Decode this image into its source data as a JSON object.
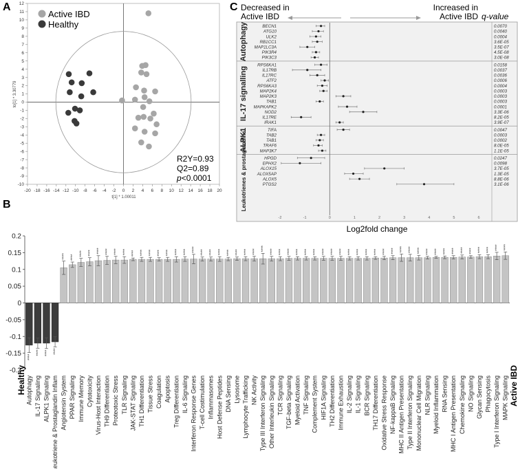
{
  "panels": {
    "a": {
      "letter": "A",
      "legend": [
        {
          "label": "Active IBD",
          "color": "#a6a6a6"
        },
        {
          "label": "Healthy",
          "color": "#3a3a3a"
        }
      ],
      "xlabel": "t[1] * 1.00011",
      "ylabel": "to[1] * 3.30779",
      "stats": [
        "R2Y=0.93",
        "Q2=0.89"
      ],
      "p_prefix": "p",
      "p_suffix": "<0.0001"
    },
    "b": {
      "letter": "B",
      "healthy_label": "Healthy",
      "active_label": "Active IBD",
      "star": "****"
    },
    "c": {
      "letter": "C",
      "decreased": [
        "Decreased in",
        "Active IBD"
      ],
      "increased": [
        "Increased in",
        "Active IBD"
      ],
      "qvalue_header": "q-value",
      "xlabel": "Log2fold change"
    }
  },
  "chart_data": [
    {
      "type": "scatter",
      "title": "",
      "xlabel": "t[1] * 1.00011",
      "ylabel": "to[1] * 3.30779",
      "xlim": [
        -20,
        20
      ],
      "ylim": [
        -10,
        12
      ],
      "xticks": [
        -20,
        -18,
        -16,
        -14,
        -12,
        -10,
        -8,
        -6,
        -4,
        -2,
        0,
        2,
        4,
        6,
        8,
        10,
        12,
        14,
        16,
        18,
        20
      ],
      "yticks": [
        -10,
        -9,
        -8,
        -7,
        -6,
        -5,
        -4,
        -3,
        -2,
        -1,
        0,
        1,
        2,
        3,
        4,
        5,
        6,
        7,
        8,
        9,
        10,
        11,
        12
      ],
      "ellipse": {
        "cx": 0,
        "cy": 0,
        "rx": 14.1,
        "ry": 8.6
      },
      "series": [
        {
          "name": "Active IBD",
          "color": "#a6a6a6",
          "points": [
            [
              5.2,
              10.8
            ],
            [
              3.9,
              4.4
            ],
            [
              4.6,
              4.5
            ],
            [
              3.7,
              3.6
            ],
            [
              4.8,
              3.4
            ],
            [
              2.6,
              1.8
            ],
            [
              4.3,
              1.4
            ],
            [
              6.6,
              1.3
            ],
            [
              4.4,
              0.6
            ],
            [
              2.4,
              0.3
            ],
            [
              -0.3,
              0.2
            ],
            [
              5.4,
              0.1
            ],
            [
              4.1,
              -0.6
            ],
            [
              6.3,
              -1.4
            ],
            [
              4.2,
              -1.8
            ],
            [
              3.1,
              -1.9
            ],
            [
              5.6,
              -2.0
            ],
            [
              6.9,
              -2.7
            ],
            [
              2.4,
              -3.2
            ],
            [
              4.4,
              -3.6
            ],
            [
              6.6,
              -3.8
            ],
            [
              3.7,
              -4.9
            ],
            [
              5.3,
              -5.4
            ]
          ]
        },
        {
          "name": "Healthy",
          "color": "#3a3a3a",
          "points": [
            [
              -11.4,
              3.4
            ],
            [
              -7.1,
              3.5
            ],
            [
              -10.8,
              2.4
            ],
            [
              -8.7,
              2.3
            ],
            [
              -11.2,
              1.2
            ],
            [
              -6.3,
              1.2
            ],
            [
              -8.8,
              0.7
            ],
            [
              -9.1,
              -1.0
            ],
            [
              -11.5,
              -1.3
            ],
            [
              -10.2,
              -2.3
            ],
            [
              -9.8,
              -2.6
            ],
            [
              -10.1,
              -0.8
            ]
          ]
        }
      ]
    },
    {
      "type": "bar",
      "title": "",
      "ylim": [
        -0.2,
        0.2
      ],
      "yticks": [
        -0.2,
        -0.15,
        -0.1,
        -0.05,
        0,
        0.05,
        0.1,
        0.15,
        0.2
      ],
      "significance": "****",
      "categories": [
        "Autophagy",
        "IL-17 Signaling",
        "ALPK1 Signaling",
        "Leukotriene & Prostaglandin Inflam",
        "Angiotensin System",
        "PPAR Signaling",
        "Immune Memory",
        "Cytotoxicity",
        "Virus-Host Interaction",
        "TH9 Differentiation",
        "Proteotoxic Stress",
        "TLR Signaling",
        "JAK-STAT Signaling",
        "TH1 Differentiation",
        "Tissue Stress",
        "Coagulation",
        "Apoptosis",
        "Treg Differentiation",
        "IL-6 Signaling",
        "Interferon Response Genes",
        "T-cell Costimulation",
        "Inflammasomes",
        "Host Defense Peptides",
        "DNA Sensing",
        "Lysosome",
        "Lymphocyte Trafficking",
        "NK Activity",
        "Type III Interferon Signaling",
        "Other Interleukin Signaling",
        "TCR Signaling",
        "TGF-beta Signaling",
        "Myeloid Activation",
        "TNF Signaling",
        "Complement System",
        "HIF1A Signaling",
        "TH2 Differentiation",
        "Immune Exhaustion",
        "IL-2 Signaling",
        "IL-1 Signaling",
        "BCR Signaling",
        "TH17 Differentiation",
        "Oxidative Stress Response",
        "NF-kappaB Signaling",
        "MHC II Antigen Presentation",
        "Type II Interferon Signaling",
        "Mononuclear Cell Migration",
        "NLR Signaling",
        "Myeloid Inflammation",
        "RNA Sensing",
        "MHC I Antigen Presentation",
        "Chemokine Signaling",
        "NO Signaling",
        "Glycan Sensing",
        "Phagocytosis",
        "Type I Interferon Signaling",
        "MAPK Signaling"
      ],
      "values": [
        -0.126,
        -0.12,
        -0.12,
        -0.116,
        0.105,
        0.114,
        0.121,
        0.123,
        0.126,
        0.127,
        0.128,
        0.128,
        0.13,
        0.13,
        0.13,
        0.13,
        0.13,
        0.13,
        0.131,
        0.131,
        0.131,
        0.131,
        0.131,
        0.131,
        0.132,
        0.132,
        0.132,
        0.132,
        0.132,
        0.132,
        0.133,
        0.133,
        0.133,
        0.133,
        0.133,
        0.133,
        0.133,
        0.133,
        0.133,
        0.133,
        0.134,
        0.134,
        0.135,
        0.135,
        0.135,
        0.135,
        0.135,
        0.136,
        0.136,
        0.136,
        0.137,
        0.137,
        0.138,
        0.138,
        0.14,
        0.141
      ],
      "errors": [
        0.022,
        0.015,
        0.016,
        0.015,
        0.02,
        0.008,
        0.012,
        0.012,
        0.015,
        0.012,
        0.011,
        0.01,
        0.004,
        0.006,
        0.006,
        0.005,
        0.006,
        0.008,
        0.007,
        0.014,
        0.006,
        0.006,
        0.007,
        0.005,
        0.005,
        0.006,
        0.007,
        0.016,
        0.007,
        0.006,
        0.006,
        0.005,
        0.005,
        0.005,
        0.006,
        0.006,
        0.006,
        0.005,
        0.005,
        0.005,
        0.004,
        0.005,
        0.006,
        0.011,
        0.01,
        0.007,
        0.004,
        0.003,
        0.004,
        0.005,
        0.006,
        0.004,
        0.006,
        0.006,
        0.011,
        0.011
      ]
    },
    {
      "type": "forest",
      "title": "",
      "xlabel": "Log2fold change",
      "xlim": [
        -2,
        6
      ],
      "xticks": [
        -2,
        -1,
        0,
        1,
        2,
        3,
        4,
        5,
        6
      ],
      "groups": [
        {
          "name": "Autophagy",
          "rows": [
            {
              "gene": "BECN1",
              "lfc": -0.35,
              "lo": -0.55,
              "hi": -0.2,
              "q": "0.0070"
            },
            {
              "gene": "ATG10",
              "lfc": -0.45,
              "lo": -0.7,
              "hi": -0.25,
              "q": "0.0040"
            },
            {
              "gene": "ULK2",
              "lfc": -0.55,
              "lo": -0.8,
              "hi": -0.35,
              "q": "0.0004"
            },
            {
              "gene": "RB1CC1",
              "lfc": -0.5,
              "lo": -0.7,
              "hi": -0.3,
              "q": "3.6E-05"
            },
            {
              "gene": "MAP1LC3A",
              "lfc": -0.9,
              "lo": -1.2,
              "hi": -0.6,
              "q": "3.5E-07"
            },
            {
              "gene": "PIK3R4",
              "lfc": -0.55,
              "lo": -0.7,
              "hi": -0.4,
              "q": "4.5E-08"
            },
            {
              "gene": "PIK3C3",
              "lfc": -0.6,
              "lo": -0.75,
              "hi": -0.45,
              "q": "3.0E-08"
            }
          ]
        },
        {
          "name": "IL-17 signalling",
          "rows": [
            {
              "gene": "RPS6KA1",
              "lfc": -0.35,
              "lo": -0.6,
              "hi": -0.1,
              "q": "0.0158"
            },
            {
              "gene": "IL17RB",
              "lfc": -0.9,
              "lo": -1.5,
              "hi": -0.35,
              "q": "0.0037"
            },
            {
              "gene": "IL17RC",
              "lfc": -0.5,
              "lo": -0.8,
              "hi": -0.2,
              "q": "0.0036"
            },
            {
              "gene": "ATF2",
              "lfc": -0.2,
              "lo": -0.35,
              "hi": -0.05,
              "q": "0.0006"
            },
            {
              "gene": "RPS6KA3",
              "lfc": -0.3,
              "lo": -0.5,
              "hi": -0.1,
              "q": "0.0004"
            },
            {
              "gene": "MAP2K4",
              "lfc": -0.25,
              "lo": -0.4,
              "hi": -0.1,
              "q": "0.0003"
            },
            {
              "gene": "MAP2K3",
              "lfc": 0.55,
              "lo": 0.25,
              "hi": 0.85,
              "q": "0.0003"
            },
            {
              "gene": "TAB1",
              "lfc": -0.4,
              "lo": -0.55,
              "hi": -0.25,
              "q": "0.0003"
            },
            {
              "gene": "MAPKAPK2",
              "lfc": 0.7,
              "lo": 0.35,
              "hi": 1.1,
              "q": "0.0001"
            },
            {
              "gene": "NOD2",
              "lfc": 1.35,
              "lo": 0.8,
              "hi": 1.9,
              "q": "3.3E-06"
            },
            {
              "gene": "IL17RE",
              "lfc": -1.15,
              "lo": -1.55,
              "hi": -0.75,
              "q": "8.2E-05"
            },
            {
              "gene": "IRAK1",
              "lfc": 0.4,
              "lo": 0.25,
              "hi": 0.55,
              "q": "3.9E-07"
            }
          ]
        },
        {
          "name": "ALPK1",
          "rows": [
            {
              "gene": "TIFA",
              "lfc": 0.55,
              "lo": 0.3,
              "hi": 0.8,
              "q": "0.0047"
            },
            {
              "gene": "TAB2",
              "lfc": -0.35,
              "lo": -0.5,
              "hi": -0.2,
              "q": "0.0003"
            },
            {
              "gene": "TAB1",
              "lfc": -0.4,
              "lo": -0.55,
              "hi": -0.25,
              "q": "0.0002"
            },
            {
              "gene": "TRAF6",
              "lfc": -0.45,
              "lo": -0.65,
              "hi": -0.3,
              "q": "8.0E-05"
            },
            {
              "gene": "MAP3K7",
              "lfc": -0.3,
              "lo": -0.45,
              "hi": -0.15,
              "q": "1.1E-05"
            }
          ]
        },
        {
          "name": "Leukotrienes & prostaglandins",
          "rows": [
            {
              "gene": "HPGD",
              "lfc": -0.75,
              "lo": -1.3,
              "hi": -0.2,
              "q": "0.0247"
            },
            {
              "gene": "EPHX2",
              "lfc": -1.2,
              "lo": -1.95,
              "hi": -0.35,
              "q": "0.0098"
            },
            {
              "gene": "ALOX15",
              "lfc": 2.2,
              "lo": 1.4,
              "hi": 3.0,
              "q": "3.7E-05"
            },
            {
              "gene": "ALOX5AP",
              "lfc": 0.95,
              "lo": 0.6,
              "hi": 1.35,
              "q": "1.3E-05"
            },
            {
              "gene": "ALOX5",
              "lfc": 1.2,
              "lo": 0.8,
              "hi": 1.6,
              "q": "8.8E-06"
            },
            {
              "gene": "PTGS2",
              "lfc": 3.8,
              "lo": 2.7,
              "hi": 5.0,
              "q": "3.1E-06"
            }
          ]
        }
      ]
    }
  ]
}
